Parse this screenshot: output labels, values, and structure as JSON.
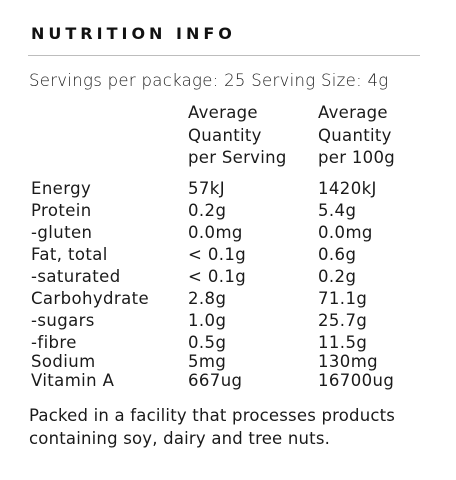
{
  "title": "NUTRITION INFO",
  "servings_line": "Servings per package: 25 Serving Size: 4g",
  "columns": {
    "per_serving": [
      "Average",
      "Quantity",
      "per Serving"
    ],
    "per_100g": [
      "Average",
      "Quantity",
      "per 100g"
    ]
  },
  "rows": [
    {
      "name": "Energy",
      "per_serving": "57kJ",
      "per_100g": "1420kJ"
    },
    {
      "name": "Protein",
      "per_serving": "0.2g",
      "per_100g": "5.4g"
    },
    {
      "name": "-gluten",
      "per_serving": "0.0mg",
      "per_100g": "0.0mg"
    },
    {
      "name": "Fat, total",
      "per_serving": "< 0.1g",
      "per_100g": "0.6g"
    },
    {
      "name": "-saturated",
      "per_serving": "< 0.1g",
      "per_100g": "0.2g"
    },
    {
      "name": "Carbohydrate",
      "per_serving": "2.8g",
      "per_100g": "71.1g"
    },
    {
      "name": "-sugars",
      "per_serving": "1.0g",
      "per_100g": "25.7g"
    },
    {
      "name": "-fibre",
      "per_serving": "0.5g",
      "per_100g": "11.5g"
    },
    {
      "name": "Sodium",
      "per_serving": "5mg",
      "per_100g": "130mg"
    },
    {
      "name": "Vitamin A",
      "per_serving": "667ug",
      "per_100g": "16700ug"
    }
  ],
  "allergen_note": "Packed in a facility that processes products containing soy, dairy and tree nuts."
}
